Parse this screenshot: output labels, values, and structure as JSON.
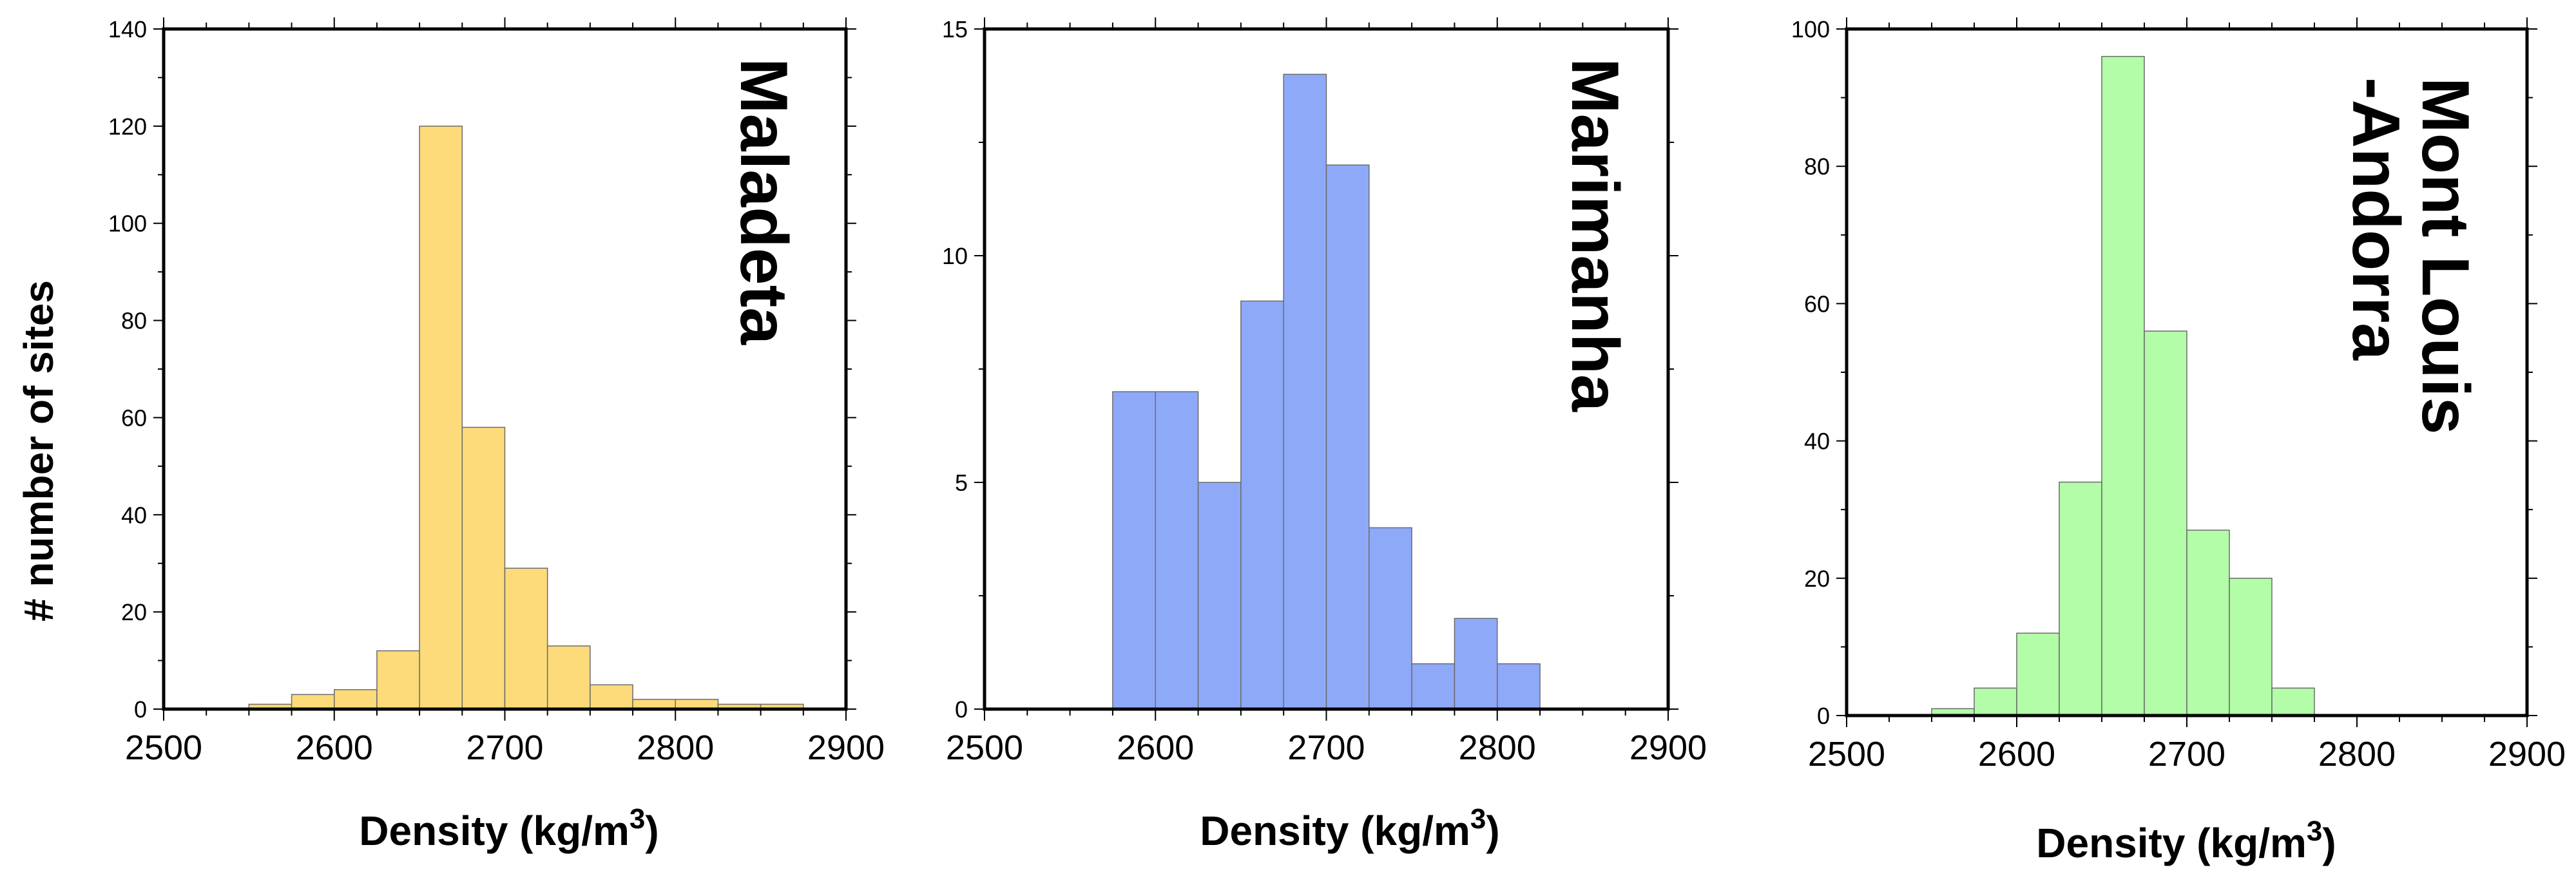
{
  "figure": {
    "ylabel": "# number of sites"
  },
  "chart_data": [
    {
      "type": "bar",
      "title_lines": [
        "Maladeta"
      ],
      "xlabel": "Density (kg/m",
      "xlabel_sup": "3",
      "xlabel_close": ")",
      "xlim": [
        2500,
        2900
      ],
      "xticks": [
        2500,
        2600,
        2700,
        2800,
        2900
      ],
      "ylim": [
        0,
        140
      ],
      "yticks": [
        0,
        20,
        40,
        60,
        80,
        100,
        120,
        140
      ],
      "bin_width": 25,
      "bins": [
        2550,
        2575,
        2600,
        2625,
        2650,
        2675,
        2700,
        2725,
        2750,
        2775,
        2800,
        2825,
        2850
      ],
      "values": [
        1,
        3,
        4,
        12,
        120,
        58,
        29,
        13,
        5,
        2,
        2,
        1,
        1
      ],
      "color": "#FDDA7A"
    },
    {
      "type": "bar",
      "title_lines": [
        "Marimanha"
      ],
      "xlabel": "Density (kg/m",
      "xlabel_sup": "3",
      "xlabel_close": ")",
      "xlim": [
        2500,
        2900
      ],
      "xticks": [
        2500,
        2600,
        2700,
        2800,
        2900
      ],
      "ylim": [
        0,
        15
      ],
      "yticks": [
        0,
        5,
        10,
        15
      ],
      "bin_width": 25,
      "bins": [
        2575,
        2600,
        2625,
        2650,
        2675,
        2700,
        2725,
        2750,
        2775,
        2800
      ],
      "values": [
        7,
        7,
        5,
        9,
        14,
        12,
        4,
        1,
        2,
        1
      ],
      "color": "#8FA9F9"
    },
    {
      "type": "bar",
      "title_lines": [
        "Mont Louis",
        "-Andorra"
      ],
      "xlabel": "Density (kg/m",
      "xlabel_sup": "3",
      "xlabel_close": ")",
      "xlim": [
        2500,
        2900
      ],
      "xticks": [
        2500,
        2600,
        2700,
        2800,
        2900
      ],
      "ylim": [
        0,
        100
      ],
      "yticks": [
        0,
        20,
        40,
        60,
        80,
        100
      ],
      "bin_width": 25,
      "bins": [
        2550,
        2575,
        2600,
        2625,
        2650,
        2675,
        2700,
        2725,
        2750
      ],
      "values": [
        1,
        4,
        12,
        34,
        96,
        56,
        27,
        20,
        4
      ],
      "color": "#B3FCA8"
    }
  ]
}
